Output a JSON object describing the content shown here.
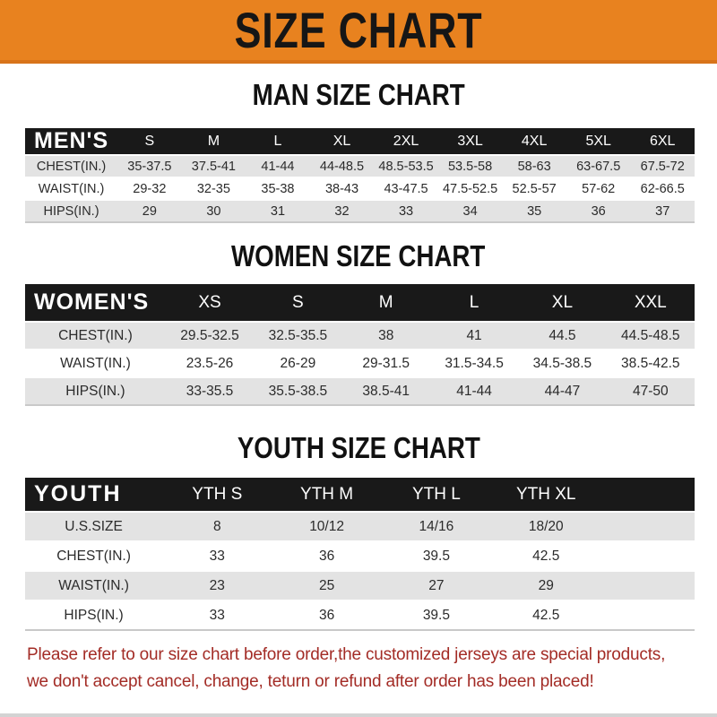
{
  "banner": {
    "title": "SIZE CHART"
  },
  "palette": {
    "banner_bg": "#E8821F",
    "banner_border": "#D8731A",
    "header_bar": "#191919",
    "row_stripe": "#E3E3E3",
    "footer_text": "#A32C26"
  },
  "sections": [
    {
      "title": "MAN SIZE CHART",
      "label": "MEN'S",
      "columns": [
        "S",
        "M",
        "L",
        "XL",
        "2XL",
        "3XL",
        "4XL",
        "5XL",
        "6XL"
      ],
      "rows": [
        {
          "label": "CHEST(IN.)",
          "values": [
            "35-37.5",
            "37.5-41",
            "41-44",
            "44-48.5",
            "48.5-53.5",
            "53.5-58",
            "58-63",
            "63-67.5",
            "67.5-72"
          ]
        },
        {
          "label": "WAIST(IN.)",
          "values": [
            "29-32",
            "32-35",
            "35-38",
            "38-43",
            "43-47.5",
            "47.5-52.5",
            "52.5-57",
            "57-62",
            "62-66.5"
          ]
        },
        {
          "label": "HIPS(IN.)",
          "values": [
            "29",
            "30",
            "31",
            "32",
            "33",
            "34",
            "35",
            "36",
            "37"
          ]
        }
      ]
    },
    {
      "title": "WOMEN SIZE CHART",
      "label": "WOMEN'S",
      "columns": [
        "XS",
        "S",
        "M",
        "L",
        "XL",
        "XXL"
      ],
      "rows": [
        {
          "label": "CHEST(IN.)",
          "values": [
            "29.5-32.5",
            "32.5-35.5",
            "38",
            "41",
            "44.5",
            "44.5-48.5"
          ]
        },
        {
          "label": "WAIST(IN.)",
          "values": [
            "23.5-26",
            "26-29",
            "29-31.5",
            "31.5-34.5",
            "34.5-38.5",
            "38.5-42.5"
          ]
        },
        {
          "label": "HIPS(IN.)",
          "values": [
            "33-35.5",
            "35.5-38.5",
            "38.5-41",
            "41-44",
            "44-47",
            "47-50"
          ]
        }
      ]
    },
    {
      "title": "YOUTH SIZE CHART",
      "label": "YOUTH",
      "columns": [
        "YTH S",
        "YTH M",
        "YTH L",
        "YTH XL"
      ],
      "rows": [
        {
          "label": "U.S.SIZE",
          "values": [
            "8",
            "10/12",
            "14/16",
            "18/20"
          ]
        },
        {
          "label": "CHEST(IN.)",
          "values": [
            "33",
            "36",
            "39.5",
            "42.5"
          ]
        },
        {
          "label": "WAIST(IN.)",
          "values": [
            "23",
            "25",
            "27",
            "29"
          ]
        },
        {
          "label": "HIPS(IN.)",
          "values": [
            "33",
            "36",
            "39.5",
            "42.5"
          ]
        }
      ]
    }
  ],
  "footer": {
    "line1": "Please refer to our size chart before order,the customized jerseys are special products,",
    "line2": "we don't accept cancel, change, teturn or refund after order has been placed!"
  }
}
